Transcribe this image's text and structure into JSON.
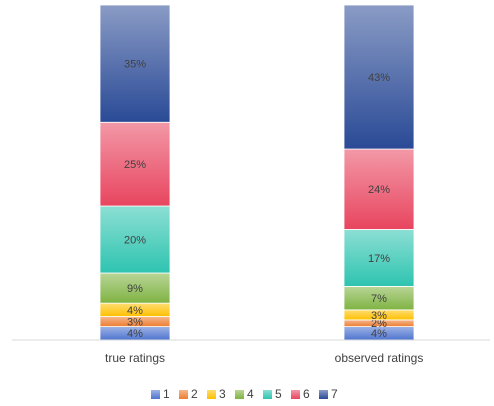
{
  "chart_data": {
    "type": "stacked_bar",
    "categories": [
      "true ratings",
      "observed ratings"
    ],
    "series": [
      {
        "name": "1",
        "color": "#4f74cf",
        "values": [
          4,
          4
        ],
        "value_labels": [
          "4%",
          "4%"
        ]
      },
      {
        "name": "2",
        "color": "#ed7d31",
        "values": [
          3,
          2
        ],
        "value_labels": [
          "3%",
          "2%"
        ]
      },
      {
        "name": "3",
        "color": "#ffc000",
        "values": [
          4,
          3
        ],
        "value_labels": [
          "4%",
          "3%"
        ]
      },
      {
        "name": "4",
        "color": "#7fb342",
        "values": [
          9,
          7
        ],
        "value_labels": [
          "9%",
          "7%"
        ]
      },
      {
        "name": "5",
        "color": "#2ec4b0",
        "values": [
          20,
          17
        ],
        "value_labels": [
          "20%",
          "17%"
        ]
      },
      {
        "name": "6",
        "color": "#e8455f",
        "values": [
          25,
          24
        ],
        "value_labels": [
          "25%",
          "24%"
        ]
      },
      {
        "name": "7",
        "color": "#2a4a96",
        "values": [
          35,
          43
        ],
        "value_labels": [
          "35%",
          "43%"
        ]
      }
    ],
    "ylim": [
      0,
      100
    ],
    "legend": "bottom"
  }
}
